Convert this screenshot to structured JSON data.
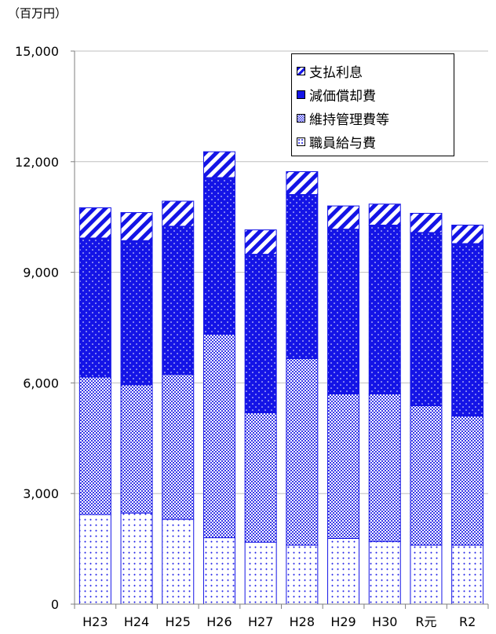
{
  "unit_label": "（百万円）",
  "colors": {
    "blue": "#1414e6",
    "white": "#ffffff",
    "axis": "#7f7f7f",
    "grid": "#bfbfbf"
  },
  "legend": [
    "支払利息",
    "減価償却費",
    "維持管理費等",
    "職員給与費"
  ],
  "chart_data": {
    "type": "bar",
    "stacked": true,
    "categories": [
      "H23",
      "H24",
      "H25",
      "H26",
      "H27",
      "H28",
      "H29",
      "H30",
      "R元",
      "R2"
    ],
    "ylim": [
      0,
      15000
    ],
    "yticks": [
      0,
      3000,
      6000,
      9000,
      12000,
      15000
    ],
    "ytick_labels": [
      "0",
      "3,000",
      "6,000",
      "9,000",
      "12,000",
      "15,000"
    ],
    "grid": true,
    "legend_position": "top-right",
    "series": [
      {
        "name": "職員給与費",
        "pattern": "sparse-dots",
        "values": [
          2430,
          2470,
          2300,
          1800,
          1680,
          1600,
          1780,
          1700,
          1600,
          1600
        ]
      },
      {
        "name": "維持管理費等",
        "pattern": "dense-mesh",
        "values": [
          3730,
          3480,
          3930,
          5520,
          3510,
          5060,
          3920,
          4000,
          3780,
          3500
        ]
      },
      {
        "name": "減価償却費",
        "pattern": "solid-dots",
        "values": [
          3770,
          3910,
          4020,
          4250,
          4300,
          4450,
          4470,
          4580,
          4700,
          4680
        ]
      },
      {
        "name": "支払利息",
        "pattern": "diagonal",
        "values": [
          820,
          760,
          680,
          700,
          660,
          620,
          630,
          570,
          520,
          500
        ]
      }
    ]
  }
}
